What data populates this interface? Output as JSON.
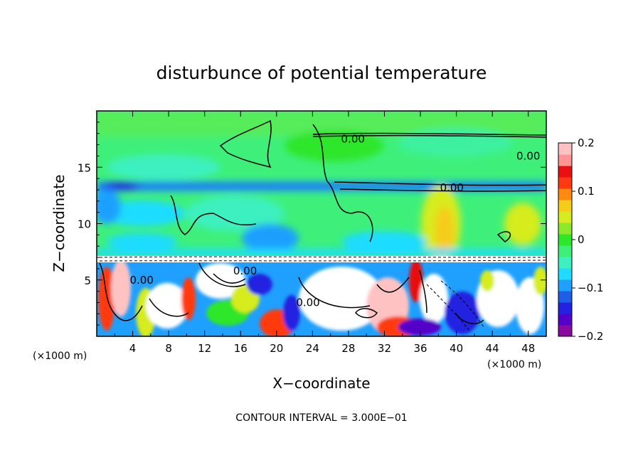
{
  "chart_data": {
    "type": "heatmap",
    "title": "disturbunce of potential temperature",
    "xlabel": "X−coordinate",
    "ylabel": "Z−coordinate",
    "x_scale_label": "(×1000 m)",
    "x_ticks": [
      4,
      8,
      12,
      16,
      20,
      24,
      28,
      32,
      36,
      40,
      44,
      48
    ],
    "x_tick_labels": [
      "4",
      "8",
      "12",
      "16",
      "20",
      "24",
      "28",
      "32",
      "36",
      "40",
      "44",
      "48"
    ],
    "y_ticks": [
      5,
      10,
      15
    ],
    "y_tick_labels": [
      "5",
      "10",
      "15"
    ],
    "xlim": [
      0,
      50
    ],
    "ylim": [
      0,
      20
    ],
    "colorbar": {
      "ticks": [
        0.2,
        0.1,
        0,
        -0.1,
        -0.2
      ],
      "tick_labels": [
        "0.2",
        "0.1",
        "0",
        "−0.1",
        "−0.2"
      ],
      "range": [
        -0.2,
        0.2
      ],
      "colors": [
        "#8a0a9e",
        "#5500c8",
        "#2222e0",
        "#1f5fe8",
        "#1fa0ff",
        "#1fdcff",
        "#3ef0c0",
        "#3ef07a",
        "#2ee62a",
        "#8ee82a",
        "#d6ec1e",
        "#f6cc1a",
        "#ff8a10",
        "#ff3a10",
        "#e81010",
        "#ff9494",
        "#ffc2c2"
      ]
    },
    "contour_labels": [
      {
        "text": "0.00",
        "x": 28.5,
        "y": 17.5
      },
      {
        "text": "0.00",
        "x": 39.5,
        "y": 13.2
      },
      {
        "text": "0.00",
        "x": 48.0,
        "y": 16.0
      },
      {
        "text": "0.00",
        "x": 5.0,
        "y": 5.0
      },
      {
        "text": "0.00",
        "x": 23.5,
        "y": 3.0
      },
      {
        "text": "0.00",
        "x": 16.5,
        "y": 5.8
      }
    ],
    "annotation": "CONTOUR INTERVAL = 3.000E−01"
  }
}
